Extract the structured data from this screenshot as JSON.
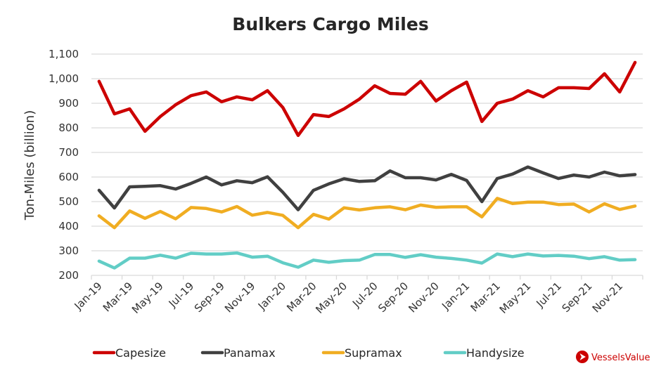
{
  "chart_data": {
    "type": "line",
    "title": "Bulkers Cargo Miles",
    "xlabel": "",
    "ylabel": "Ton-Miles (billion)",
    "ylim": [
      200,
      1100
    ],
    "yticks": [
      200,
      300,
      400,
      500,
      600,
      700,
      800,
      900,
      1000,
      1100
    ],
    "ytick_labels": [
      "200",
      "300",
      "400",
      "500",
      "600",
      "700",
      "800",
      "900",
      "1,000",
      "1,100"
    ],
    "grid": true,
    "legend_position": "bottom",
    "x": [
      "Jan-19",
      "Feb-19",
      "Mar-19",
      "Apr-19",
      "May-19",
      "Jun-19",
      "Jul-19",
      "Aug-19",
      "Sep-19",
      "Oct-19",
      "Nov-19",
      "Dec-19",
      "Jan-20",
      "Feb-20",
      "Mar-20",
      "Apr-20",
      "May-20",
      "Jun-20",
      "Jul-20",
      "Aug-20",
      "Sep-20",
      "Oct-20",
      "Nov-20",
      "Dec-20",
      "Jan-21",
      "Feb-21",
      "Mar-21",
      "Apr-21",
      "May-21",
      "Jun-21",
      "Jul-21",
      "Aug-21",
      "Sep-21",
      "Oct-21",
      "Nov-21",
      "Dec-21"
    ],
    "xtick_labels": [
      "Jan-19",
      "Mar-19",
      "May-19",
      "Jul-19",
      "Sep-19",
      "Nov-19",
      "Jan-20",
      "Mar-20",
      "May-20",
      "Jul-20",
      "Sep-20",
      "Nov-20",
      "Jan-21",
      "Mar-21",
      "May-21",
      "Jul-21",
      "Sep-21",
      "Nov-21"
    ],
    "series": [
      {
        "name": "Capesize",
        "color": "#cc0000",
        "values": [
          989,
          857,
          877,
          786,
          846,
          894,
          931,
          946,
          906,
          926,
          914,
          951,
          883,
          769,
          854,
          846,
          877,
          917,
          971,
          940,
          937,
          989,
          909,
          951,
          986,
          826,
          900,
          917,
          951,
          926,
          963,
          963,
          960,
          1020,
          946,
          1066
        ]
      },
      {
        "name": "Panamax",
        "color": "#404040",
        "values": [
          546,
          474,
          560,
          562,
          565,
          551,
          574,
          600,
          568,
          585,
          577,
          601,
          538,
          467,
          546,
          572,
          593,
          582,
          585,
          625,
          597,
          597,
          588,
          611,
          586,
          500,
          594,
          612,
          641,
          617,
          594,
          608,
          600,
          620,
          605,
          610
        ]
      },
      {
        "name": "Supramax",
        "color": "#f0ad22",
        "values": [
          442,
          394,
          462,
          432,
          460,
          430,
          476,
          472,
          458,
          480,
          445,
          456,
          444,
          394,
          448,
          429,
          475,
          466,
          475,
          479,
          467,
          486,
          477,
          479,
          479,
          438,
          513,
          492,
          498,
          498,
          488,
          490,
          458,
          491,
          468,
          482
        ]
      },
      {
        "name": "Handysize",
        "color": "#62cdc6",
        "values": [
          258,
          230,
          270,
          270,
          282,
          270,
          290,
          287,
          287,
          291,
          274,
          278,
          251,
          233,
          262,
          253,
          260,
          262,
          285,
          285,
          273,
          284,
          274,
          269,
          262,
          250,
          287,
          276,
          287,
          279,
          281,
          278,
          268,
          276,
          262,
          264
        ]
      }
    ]
  },
  "brand": {
    "name": "VesselsValue",
    "color": "#cc0000"
  }
}
